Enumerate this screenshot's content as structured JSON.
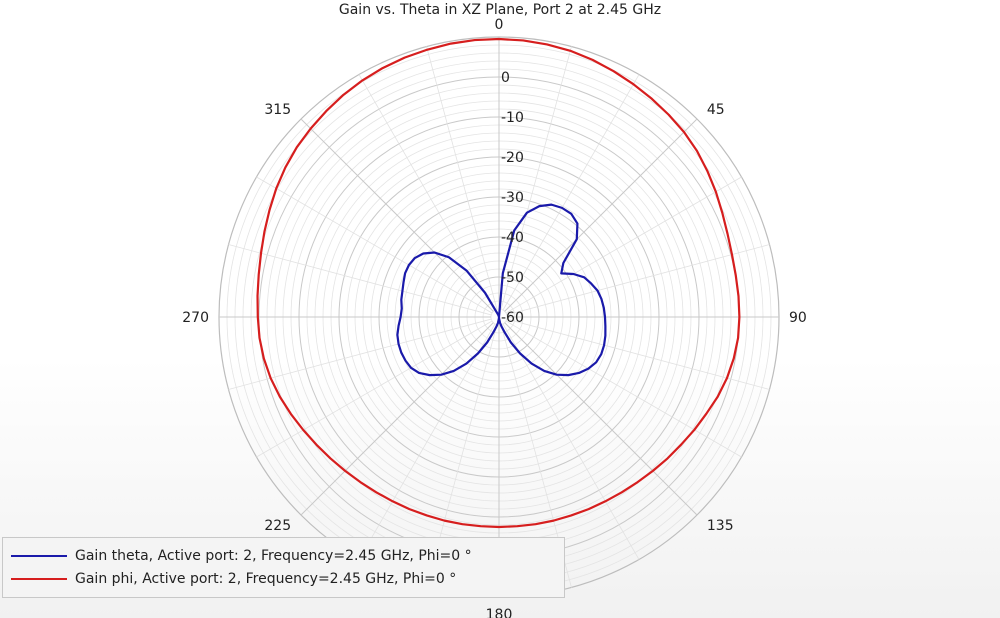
{
  "chart_data": {
    "type": "polar-line",
    "title": "Gain vs. Theta in XZ Plane, Port 2 at 2.45 GHz",
    "angular_axis": {
      "ticks": [
        0,
        45,
        90,
        135,
        180,
        225,
        270,
        315
      ],
      "tick_labels": [
        "0",
        "45",
        "90",
        "135",
        "180",
        "225",
        "270",
        "315"
      ],
      "direction": "clockwise",
      "zero_location": "top"
    },
    "radial_axis": {
      "range": [
        -60,
        10
      ],
      "ticks": [
        0,
        -10,
        -20,
        -30,
        -40,
        -50,
        -60
      ],
      "tick_labels": [
        "0",
        "-10",
        "-20",
        "-30",
        "-40",
        "-50",
        "-60"
      ]
    },
    "grid": true,
    "legend_position": "bottom-left",
    "series": [
      {
        "name": "Gain theta, Active port: 2, Frequency=2.45 GHz, Phi=0 °",
        "color": "#1a1aaa",
        "theta": [
          0,
          5,
          10,
          15,
          20,
          25,
          30,
          35,
          40,
          45,
          50,
          55,
          60,
          65,
          70,
          75,
          80,
          85,
          90,
          95,
          100,
          105,
          110,
          115,
          120,
          125,
          130,
          135,
          140,
          145,
          150,
          155,
          160,
          165,
          170,
          175,
          180,
          185,
          190,
          195,
          200,
          205,
          210,
          215,
          220,
          225,
          230,
          235,
          240,
          245,
          250,
          255,
          260,
          265,
          270,
          275,
          280,
          285,
          290,
          295,
          300,
          305,
          310,
          315,
          320,
          325,
          330,
          335,
          340,
          345,
          350,
          355,
          360
        ],
        "gain": [
          -60,
          -49,
          -38,
          -33,
          -30.5,
          -29,
          -28.5,
          -28.5,
          -29.5,
          -32.5,
          -39,
          -41,
          -38.5,
          -36.5,
          -35.5,
          -34.5,
          -34,
          -33.7,
          -33.5,
          -33.3,
          -33,
          -32.8,
          -32.8,
          -33.2,
          -34.2,
          -35.6,
          -37.4,
          -39.6,
          -42.4,
          -45.8,
          -49.5,
          -53,
          -56,
          -57.5,
          -58.5,
          -59.5,
          -60,
          -59.5,
          -58.5,
          -57.5,
          -56,
          -53,
          -49.5,
          -45.8,
          -42.4,
          -39.6,
          -37.4,
          -35.6,
          -34.6,
          -34.2,
          -34,
          -34,
          -34.2,
          -34.8,
          -35.4,
          -35.6,
          -35.2,
          -35,
          -34.6,
          -34.1,
          -34,
          -34.3,
          -35.3,
          -37.2,
          -40.5,
          -45.8,
          -53,
          -59,
          -59.5,
          -60,
          -60,
          -60,
          -60
        ]
      },
      {
        "name": "Gain phi, Active port: 2, Frequency=2.45 GHz, Phi=0 °",
        "color": "#d61e1e",
        "theta": [
          0,
          5,
          10,
          15,
          20,
          25,
          30,
          35,
          40,
          45,
          50,
          55,
          60,
          65,
          70,
          75,
          80,
          85,
          90,
          95,
          100,
          105,
          110,
          115,
          120,
          125,
          130,
          135,
          140,
          145,
          150,
          155,
          160,
          165,
          170,
          175,
          180,
          185,
          190,
          195,
          200,
          205,
          210,
          215,
          220,
          225,
          230,
          235,
          240,
          245,
          250,
          255,
          260,
          265,
          270,
          275,
          280,
          285,
          290,
          295,
          300,
          305,
          310,
          315,
          320,
          325,
          330,
          335,
          340,
          345,
          350,
          355,
          360
        ],
        "gain": [
          9.5,
          9.4,
          9.2,
          8.9,
          8.4,
          7.8,
          7.2,
          6.6,
          6.0,
          5.4,
          4.6,
          3.6,
          2.6,
          1.6,
          0.8,
          0.3,
          0.1,
          0.1,
          0.1,
          0.0,
          -0.4,
          -1.0,
          -1.8,
          -2.8,
          -3.6,
          -4.4,
          -5.0,
          -5.6,
          -6.1,
          -6.5,
          -6.8,
          -7.0,
          -7.2,
          -7.3,
          -7.4,
          -7.5,
          -7.5,
          -7.5,
          -7.4,
          -7.3,
          -7.2,
          -7.0,
          -6.8,
          -6.5,
          -6.1,
          -5.6,
          -5.0,
          -4.3,
          -3.5,
          -2.6,
          -1.7,
          -0.9,
          -0.3,
          0.1,
          0.3,
          0.6,
          1.0,
          1.6,
          2.4,
          3.3,
          4.3,
          5.2,
          6.0,
          6.6,
          7.2,
          7.8,
          8.3,
          8.7,
          9.0,
          9.2,
          9.4,
          9.5,
          9.5
        ]
      }
    ]
  }
}
